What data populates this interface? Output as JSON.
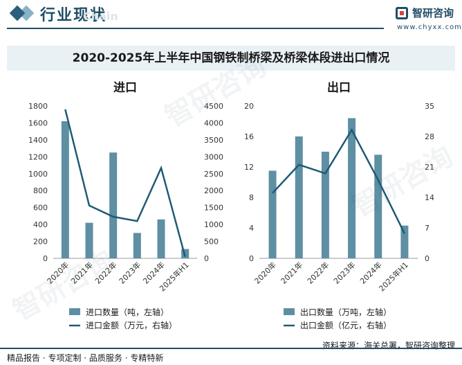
{
  "header": {
    "section_title": "行业现状",
    "watermark_en": "Chain",
    "logo_text": "智研咨询",
    "logo_url": "www.chyxx.com"
  },
  "banner": {
    "title": "2020-2025年上半年中国钢铁制桥梁及桥梁体段进出口情况"
  },
  "colors": {
    "bar": "#5e8fa3",
    "line": "#1f5a76",
    "axis": "#999999"
  },
  "chart_data": [
    {
      "type": "bar",
      "title": "进口",
      "categories": [
        "2020年",
        "2021年",
        "2022年",
        "2023年",
        "2024年",
        "2025年H1"
      ],
      "y_left": {
        "min": 0,
        "max": 1800,
        "ticks": [
          0,
          200,
          400,
          600,
          800,
          1000,
          1200,
          1400,
          1600,
          1800
        ]
      },
      "y_right": {
        "min": 0,
        "max": 4500,
        "ticks": [
          0,
          500,
          1000,
          1500,
          2000,
          2500,
          3000,
          3500,
          4000,
          4500
        ]
      },
      "series": [
        {
          "name": "进口数量（吨，左轴）",
          "type": "bar",
          "axis": "left",
          "values": [
            1620,
            420,
            1250,
            300,
            460,
            110
          ]
        },
        {
          "name": "进口金额（万元，右轴）",
          "type": "line",
          "axis": "right",
          "values": [
            4400,
            1560,
            1230,
            1100,
            2670,
            50
          ]
        }
      ],
      "legend_position": "bottom"
    },
    {
      "type": "bar",
      "title": "出口",
      "categories": [
        "2020年",
        "2021年",
        "2022年",
        "2023年",
        "2024年",
        "2025年H1"
      ],
      "y_left": {
        "min": 0,
        "max": 20,
        "ticks": [
          0,
          4,
          8,
          12,
          16,
          20
        ]
      },
      "y_right": {
        "min": 0,
        "max": 35,
        "ticks": [
          0,
          7,
          14,
          21,
          28,
          35
        ]
      },
      "series": [
        {
          "name": "出口数量（万吨，左轴）",
          "type": "bar",
          "axis": "left",
          "values": [
            11.5,
            16.0,
            14.0,
            18.4,
            13.6,
            4.3
          ]
        },
        {
          "name": "出口金额（亿元，右轴）",
          "type": "line",
          "axis": "right",
          "values": [
            15.0,
            21.5,
            19.5,
            29.5,
            18.0,
            5.7
          ]
        }
      ],
      "legend_position": "bottom"
    }
  ],
  "footer": {
    "left": "精品报告 · 专项定制 · 品质服务 · 专精特新",
    "source": "资料来源：海关总署，智研咨询整理"
  },
  "watermark": "智研咨询"
}
